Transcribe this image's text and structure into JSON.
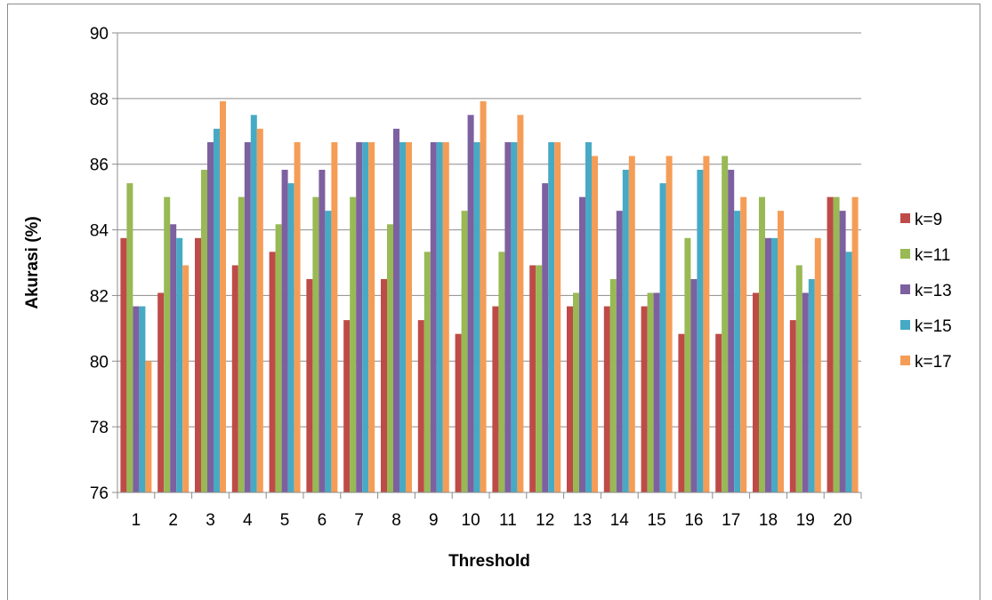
{
  "chart_data": {
    "type": "bar",
    "title": "",
    "xlabel": "Threshold",
    "ylabel": "Akurasi (%)",
    "ylim": [
      76,
      90
    ],
    "yticks": [
      "76",
      "78",
      "80",
      "82",
      "84",
      "86",
      "88",
      "90"
    ],
    "grid": true,
    "legend_position": "right",
    "categories": [
      "1",
      "2",
      "3",
      "4",
      "5",
      "6",
      "7",
      "8",
      "9",
      "10",
      "11",
      "12",
      "13",
      "14",
      "15",
      "16",
      "17",
      "18",
      "19",
      "20"
    ],
    "series": [
      {
        "name": "k=9",
        "color": "#be4b48",
        "values": [
          83.75,
          82.08,
          83.75,
          82.92,
          83.33,
          82.5,
          81.25,
          82.5,
          81.25,
          80.83,
          81.67,
          82.92,
          81.67,
          81.67,
          81.67,
          80.83,
          80.83,
          82.08,
          81.25,
          85.0
        ]
      },
      {
        "name": "k=11",
        "color": "#98b954",
        "values": [
          85.42,
          85.0,
          85.83,
          85.0,
          84.17,
          85.0,
          85.0,
          84.17,
          83.33,
          84.58,
          83.33,
          82.92,
          82.08,
          82.5,
          82.08,
          83.75,
          86.25,
          85.0,
          82.92,
          85.0
        ]
      },
      {
        "name": "k=13",
        "color": "#7d60a0",
        "values": [
          81.67,
          84.17,
          86.67,
          86.67,
          85.83,
          85.83,
          86.67,
          87.08,
          86.67,
          87.5,
          86.67,
          85.42,
          85.0,
          84.58,
          82.08,
          82.5,
          85.83,
          83.75,
          82.08,
          84.58
        ]
      },
      {
        "name": "k=15",
        "color": "#46aac5",
        "values": [
          81.67,
          83.75,
          87.08,
          87.5,
          85.42,
          84.58,
          86.67,
          86.67,
          86.67,
          86.67,
          86.67,
          86.67,
          86.67,
          85.83,
          85.42,
          85.83,
          84.58,
          83.75,
          82.5,
          83.33
        ]
      },
      {
        "name": "k=17",
        "color": "#f59d56",
        "values": [
          80.0,
          82.92,
          87.92,
          87.08,
          86.67,
          86.67,
          86.67,
          86.67,
          86.67,
          87.92,
          87.5,
          86.67,
          86.25,
          86.25,
          86.25,
          86.25,
          85.0,
          84.58,
          83.75,
          85.0
        ]
      }
    ]
  }
}
